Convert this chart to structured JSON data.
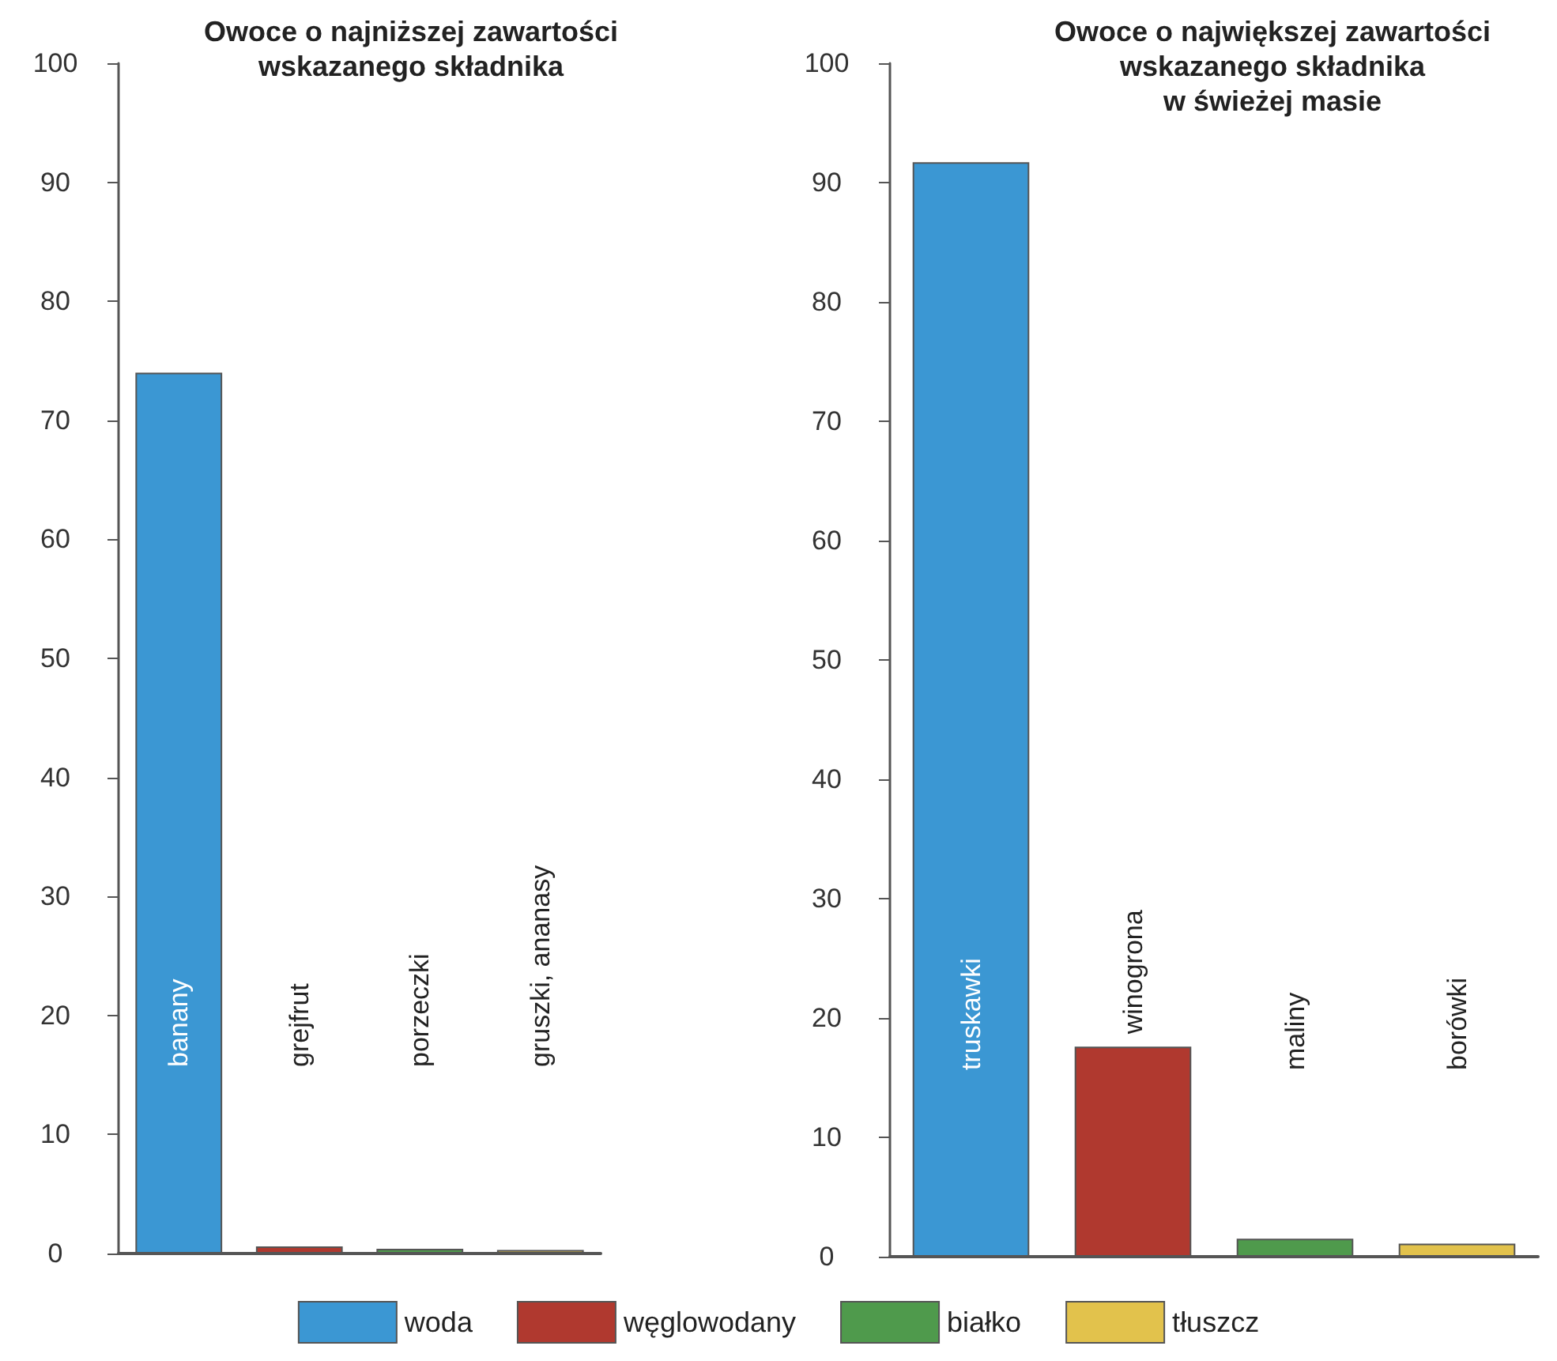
{
  "chart_data": [
    {
      "type": "bar",
      "title": "Owoce o najniższej zawartości\nwskazanego składnika",
      "categories": [
        "banany",
        "grejfrut",
        "porzeczki",
        "gruszki, ananasy"
      ],
      "series": [
        {
          "name": "woda",
          "color": "#3b97d3",
          "values": [
            74,
            null,
            null,
            null
          ]
        },
        {
          "name": "węglowodany",
          "color": "#b0392f",
          "values": [
            null,
            0.6,
            null,
            null
          ]
        },
        {
          "name": "białko",
          "color": "#4f9a4c",
          "values": [
            null,
            null,
            0.4,
            null
          ]
        },
        {
          "name": "tłuszcz",
          "color": "#e2c24c",
          "values": [
            null,
            null,
            null,
            0.3
          ]
        }
      ],
      "ylim": [
        0,
        100
      ],
      "yticks": [
        0,
        10,
        20,
        30,
        40,
        50,
        60,
        70,
        80,
        90,
        100
      ],
      "grid": false,
      "legend": "bottom"
    },
    {
      "type": "bar",
      "title": "Owoce o największej zawartości\nwskazanego składnika\nw świeżej masie",
      "categories": [
        "truskawki",
        "winogrona",
        "maliny",
        "borówki"
      ],
      "series": [
        {
          "color": "#3b97d3",
          "values": [
            91.7,
            null,
            null,
            null
          ]
        },
        {
          "color": "#b0392f",
          "values": [
            null,
            17.6,
            null,
            null
          ]
        },
        {
          "color": "#4f9a4c",
          "values": [
            null,
            null,
            1.5,
            null
          ]
        },
        {
          "color": "#e2c24c",
          "values": [
            null,
            null,
            null,
            1.1
          ]
        }
      ],
      "ylim": [
        0,
        100
      ],
      "yticks": [
        0,
        10,
        20,
        30,
        40,
        50,
        60,
        70,
        80,
        90,
        100
      ],
      "grid": false
    }
  ]
}
